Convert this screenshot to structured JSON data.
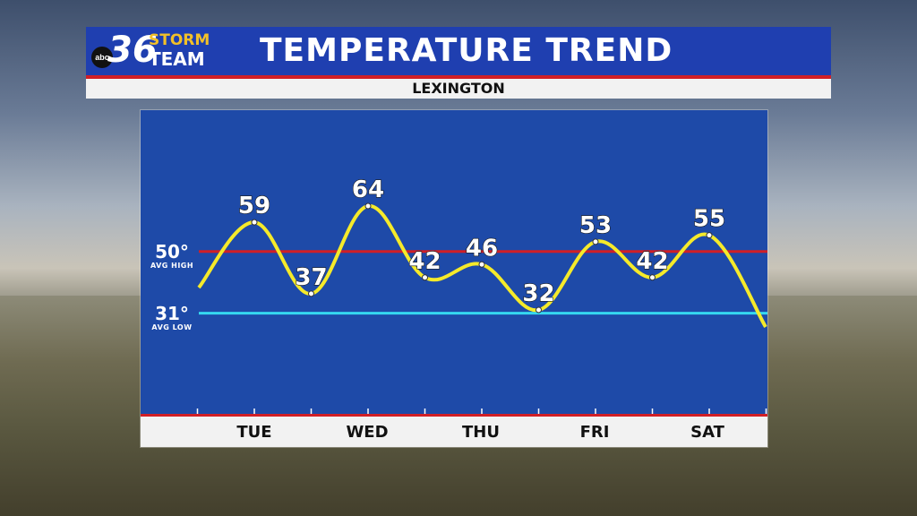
{
  "header": {
    "title": "TEMPERATURE TREND",
    "location": "LEXINGTON",
    "logo": {
      "badge": "abc",
      "number": "36",
      "line1": "STORM",
      "line2": "TEAM"
    }
  },
  "averages": {
    "high": {
      "value": "50°",
      "label": "AVG HIGH"
    },
    "low": {
      "value": "31°",
      "label": "AVG LOW"
    }
  },
  "chart_data": {
    "type": "line",
    "title": "TEMPERATURE TREND",
    "subtitle": "LEXINGTON",
    "categories": [
      "TUE",
      "WED",
      "THU",
      "FRI",
      "SAT"
    ],
    "points": [
      {
        "x": 0,
        "y": 59
      },
      {
        "x": 1,
        "y": 37
      },
      {
        "x": 2,
        "y": 64
      },
      {
        "x": 3,
        "y": 42
      },
      {
        "x": 4,
        "y": 46
      },
      {
        "x": 5,
        "y": 32
      },
      {
        "x": 6,
        "y": 53
      },
      {
        "x": 7,
        "y": 42
      },
      {
        "x": 8,
        "y": 55
      }
    ],
    "avg_high": 50,
    "avg_low": 31,
    "colors": {
      "line": "#f5ea2a",
      "avg_high": "#d11f26",
      "avg_low": "#35d8f0",
      "panel": "#1e4aa8"
    }
  }
}
